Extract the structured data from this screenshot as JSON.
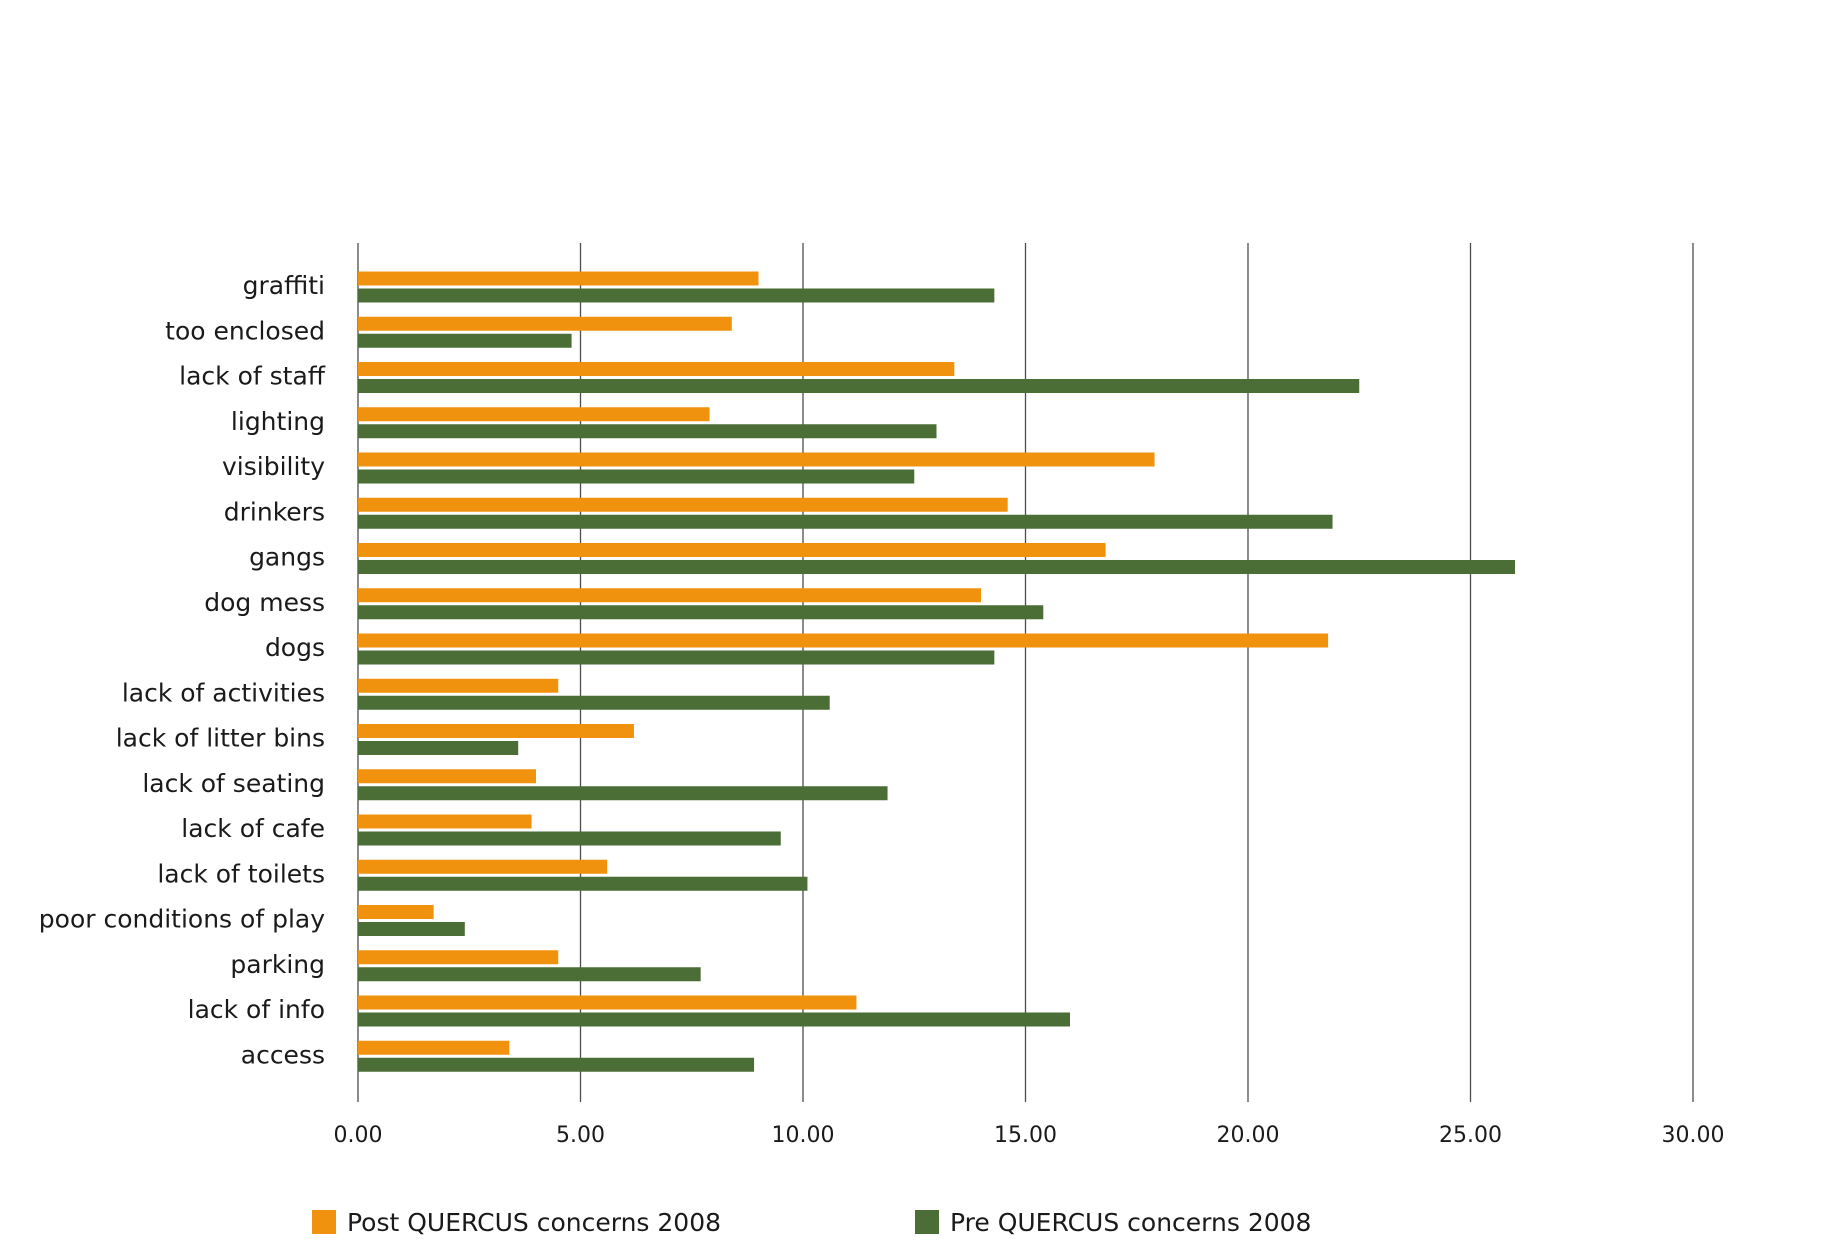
{
  "chart_data": {
    "type": "bar",
    "orientation": "horizontal",
    "title": "",
    "xlabel": "",
    "ylabel": "",
    "xlim": [
      0,
      30
    ],
    "xticks": [
      0,
      5,
      10,
      15,
      20,
      25,
      30
    ],
    "xtick_labels": [
      "0.00",
      "5.00",
      "10.00",
      "15.00",
      "20.00",
      "25.00",
      "30.00"
    ],
    "grid": true,
    "legend_position": "bottom",
    "categories": [
      "graffiti",
      "too enclosed",
      "lack of staff",
      "lighting",
      "visibility",
      "drinkers",
      "gangs",
      "dog mess",
      "dogs",
      "lack of activities",
      "lack of litter bins",
      "lack of seating",
      "lack of cafe",
      "lack of toilets",
      "poor conditions of play",
      "parking",
      "lack of info",
      "access"
    ],
    "series": [
      {
        "name": "Post QUERCUS concerns 2008",
        "color": "#f0920e",
        "values": [
          9.0,
          8.4,
          13.4,
          7.9,
          17.9,
          14.6,
          16.8,
          14.0,
          21.8,
          4.5,
          6.2,
          4.0,
          3.9,
          5.6,
          1.7,
          4.5,
          11.2,
          3.4
        ]
      },
      {
        "name": "Pre QUERCUS concerns 2008",
        "color": "#4a6e35",
        "values": [
          14.3,
          4.8,
          22.5,
          13.0,
          12.5,
          21.9,
          26.0,
          15.4,
          14.3,
          10.6,
          3.6,
          11.9,
          9.5,
          10.1,
          2.4,
          7.7,
          16.0,
          8.9
        ]
      }
    ]
  }
}
